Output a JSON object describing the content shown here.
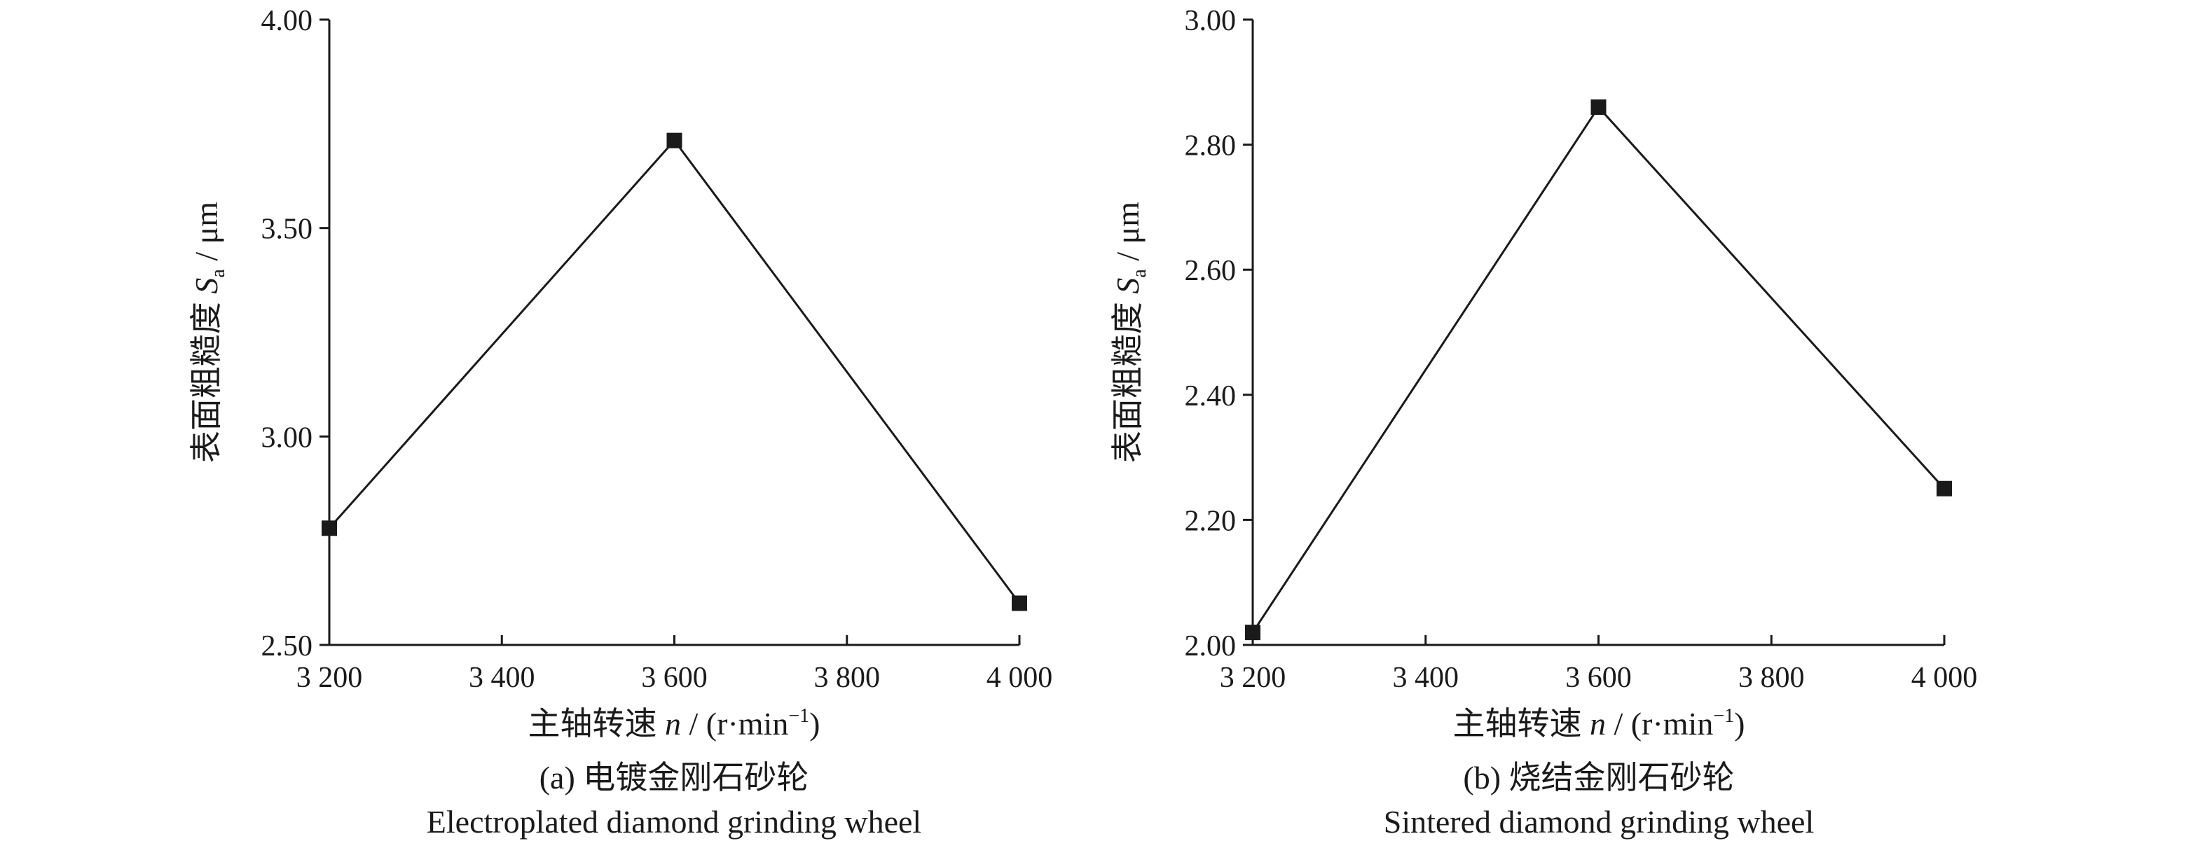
{
  "chart_data": [
    {
      "type": "line",
      "panel": "a",
      "x": [
        3200,
        3600,
        4000
      ],
      "series": [
        {
          "values": [
            2.78,
            3.71,
            2.6
          ]
        }
      ],
      "xticks": [
        3200,
        3400,
        3600,
        3800,
        4000
      ],
      "xtick_labels": [
        "3 200",
        "3 400",
        "3 600",
        "3 800",
        "4 000"
      ],
      "xlim": [
        3200,
        4000
      ],
      "yticks": [
        2.5,
        3.0,
        3.5,
        4.0
      ],
      "ytick_labels": [
        "2.50",
        "3.00",
        "3.50",
        "4.00"
      ],
      "ylim": [
        2.5,
        4.0
      ],
      "xlabel": {
        "text": "主轴转速 ",
        "var": "n",
        "unit": " / (r·min",
        "sup": "−1",
        "tail": ")"
      },
      "ylabel": {
        "text": "表面粗糙度 ",
        "var": "S",
        "sub": "a",
        "unit": " / μm"
      },
      "caption_cn": "(a) 电镀金刚石砂轮",
      "caption_en": "Electroplated diamond grinding wheel",
      "marker": "square",
      "grid": false
    },
    {
      "type": "line",
      "panel": "b",
      "x": [
        3200,
        3600,
        4000
      ],
      "series": [
        {
          "values": [
            2.02,
            2.86,
            2.25
          ]
        }
      ],
      "xticks": [
        3200,
        3400,
        3600,
        3800,
        4000
      ],
      "xtick_labels": [
        "3 200",
        "3 400",
        "3 600",
        "3 800",
        "4 000"
      ],
      "xlim": [
        3200,
        4000
      ],
      "yticks": [
        2.0,
        2.2,
        2.4,
        2.6,
        2.8,
        3.0
      ],
      "ytick_labels": [
        "2.00",
        "2.20",
        "2.40",
        "2.60",
        "2.80",
        "3.00"
      ],
      "ylim": [
        2.0,
        3.0
      ],
      "xlabel": {
        "text": "主轴转速 ",
        "var": "n",
        "unit": " / (r·min",
        "sup": "−1",
        "tail": ")"
      },
      "ylabel": {
        "text": "表面粗糙度 ",
        "var": "S",
        "sub": "a",
        "unit": " / μm"
      },
      "caption_cn": "(b) 烧结金刚石砂轮",
      "caption_en": "Sintered diamond grinding wheel",
      "marker": "square",
      "grid": false
    }
  ]
}
